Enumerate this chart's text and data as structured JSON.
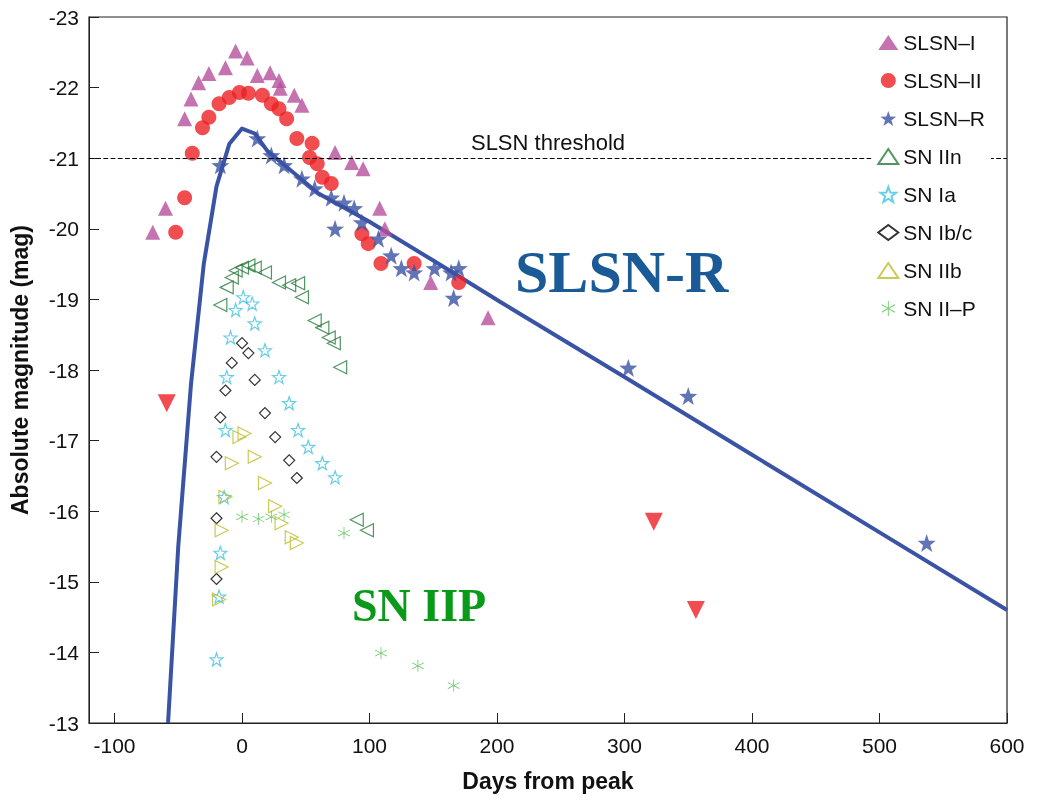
{
  "chart_data": {
    "type": "scatter",
    "xlabel": "Days from peak",
    "ylabel": "Absolute magnitude (mag)",
    "xlim": [
      -120,
      600
    ],
    "xticks": [
      -100,
      0,
      100,
      200,
      300,
      400,
      500,
      600
    ],
    "ylim": [
      -13,
      -23
    ],
    "yticks": [
      -23,
      -22,
      -21,
      -20,
      -19,
      -18,
      -17,
      -16,
      -15,
      -14,
      -13
    ],
    "grid": false,
    "legend": "top right",
    "ref_lines": [
      {
        "axis": "y",
        "value": -21,
        "label": "SLSN threshold",
        "color": "#000000",
        "line_style": "dashed"
      }
    ],
    "annotations": [
      "SLSN-R",
      "SN IIP"
    ],
    "series": [
      {
        "name": "SLSN–I",
        "color": "#b5509c",
        "marker": "triangle",
        "x": [
          -70,
          -60,
          -45,
          -40,
          -34,
          -26,
          -13,
          -5,
          4,
          12,
          22,
          29,
          30,
          41,
          47,
          73,
          86,
          95,
          108,
          112,
          148,
          170,
          193
        ],
        "values": [
          -19.95,
          -20.29,
          -21.56,
          -21.84,
          -22.07,
          -22.2,
          -22.28,
          -22.52,
          -22.42,
          -22.17,
          -22.21,
          -22.1,
          -21.99,
          -21.89,
          -21.75,
          -21.08,
          -20.94,
          -20.85,
          -20.29,
          -20.0,
          -19.24,
          null,
          -18.74
        ]
      },
      {
        "name": "SLSN–II",
        "color": "#ee2024",
        "marker": "circle",
        "x": [
          -52,
          -45,
          -39,
          -31,
          -26,
          -18,
          -10,
          -2,
          5,
          16,
          23,
          29,
          35,
          43,
          55,
          53,
          59,
          63,
          70,
          94,
          99,
          109,
          135,
          170
        ],
        "values": [
          -19.95,
          -20.44,
          -21.07,
          -21.43,
          -21.58,
          -21.77,
          -21.86,
          -21.93,
          -21.92,
          -21.89,
          -21.77,
          -21.7,
          -21.56,
          -21.28,
          -21.21,
          -21.01,
          -20.92,
          -20.73,
          -20.64,
          -19.93,
          -19.79,
          -19.51,
          -19.51,
          -19.24
        ]
      },
      {
        "name": "SLSN–R",
        "color": "#3a53a4",
        "marker": "star",
        "x": [
          -17,
          12,
          23,
          33,
          47,
          57,
          70,
          80,
          88,
          73,
          94,
          107,
          117,
          125,
          135,
          151,
          164,
          166,
          170,
          303,
          350,
          537
        ],
        "values": [
          -20.9,
          -21.28,
          -21.04,
          -20.9,
          -20.71,
          -20.57,
          -20.44,
          -20.37,
          -20.29,
          -20.0,
          -20.09,
          -19.86,
          -19.62,
          -19.44,
          -19.38,
          -19.44,
          -19.38,
          -19.02,
          -19.44,
          -18.03,
          -17.63,
          -15.55
        ]
      },
      {
        "name": "SN IIn",
        "color": "#267a3a",
        "marker": "triangle",
        "x": [
          -17,
          -12,
          -8,
          -5,
          0,
          5,
          10,
          18,
          29,
          37,
          44,
          47,
          57,
          63,
          68,
          72,
          77,
          90,
          98
        ],
        "values": [
          -18.92,
          -19.17,
          -19.31,
          -19.41,
          -19.45,
          -19.48,
          -19.45,
          -19.38,
          -19.24,
          -19.2,
          -19.23,
          -19.03,
          -18.7,
          -18.6,
          -18.46,
          -18.38,
          -18.04,
          -15.88,
          -15.73
        ]
      },
      {
        "name": "SN Ia",
        "color": "#3ec3e0",
        "marker": "star",
        "x": [
          -20,
          -18,
          -17,
          -14,
          -13,
          -12,
          -9,
          -5,
          1,
          8,
          10,
          18,
          29,
          37,
          44,
          52,
          63,
          73
        ],
        "values": [
          -13.9,
          -14.79,
          -15.41,
          -16.2,
          -17.15,
          -17.9,
          -18.46,
          -18.85,
          -19.03,
          -18.94,
          -18.66,
          -18.28,
          -17.9,
          -17.53,
          -17.15,
          -16.91,
          -16.68,
          -16.48
        ]
      },
      {
        "name": "SN Ib/c",
        "color": "#000000",
        "marker": "diamond",
        "x": [
          -20,
          -20,
          -20,
          -17,
          -13,
          -8,
          0,
          5,
          10,
          18,
          26,
          37,
          43
        ],
        "values": [
          -15.9,
          -15.04,
          -16.77,
          -17.33,
          -17.71,
          -18.1,
          -18.38,
          -18.24,
          -17.86,
          -17.39,
          -17.05,
          -16.72,
          -16.47
        ]
      },
      {
        "name": "SN IIb",
        "color": "#bfbb2c",
        "marker": "triangle",
        "x": [
          -18,
          -16,
          -16,
          -13,
          -8,
          -2,
          2,
          10,
          18,
          26,
          31,
          39,
          43
        ],
        "values": [
          -14.75,
          -15.21,
          -15.73,
          -16.2,
          -16.68,
          -17.05,
          -17.1,
          -16.77,
          -16.4,
          -16.07,
          -15.83,
          -15.63,
          -15.55
        ]
      },
      {
        "name": "SN II–P",
        "color": "#4cbb4c",
        "marker": "cross",
        "x": [
          0,
          13,
          23,
          33,
          80,
          109,
          138,
          166
        ],
        "values": [
          -15.92,
          -15.89,
          -15.92,
          -15.95,
          -15.69,
          -13.99,
          -13.81,
          -13.53
        ]
      },
      {
        "color": "#ee2024",
        "marker": "triangle",
        "x": [
          -59,
          323,
          356
        ],
        "values": [
          -17.53,
          -15.85,
          -14.6
        ]
      },
      {
        "type": "line",
        "color": "#3a53a4",
        "marker": "none",
        "x": [
          -58,
          -50,
          -40,
          -30,
          -20,
          -10,
          0,
          10,
          20,
          40,
          60,
          100,
          150,
          203,
          300,
          400,
          500,
          600
        ],
        "values": [
          -13,
          -15.5,
          -17.8,
          -19.5,
          -20.6,
          -21.2,
          -21.42,
          -21.35,
          -21.1,
          -20.8,
          -20.5,
          -20.1,
          -19.55,
          -18.96,
          -17.9,
          -16.8,
          -15.7,
          -14.6
        ]
      }
    ]
  }
}
